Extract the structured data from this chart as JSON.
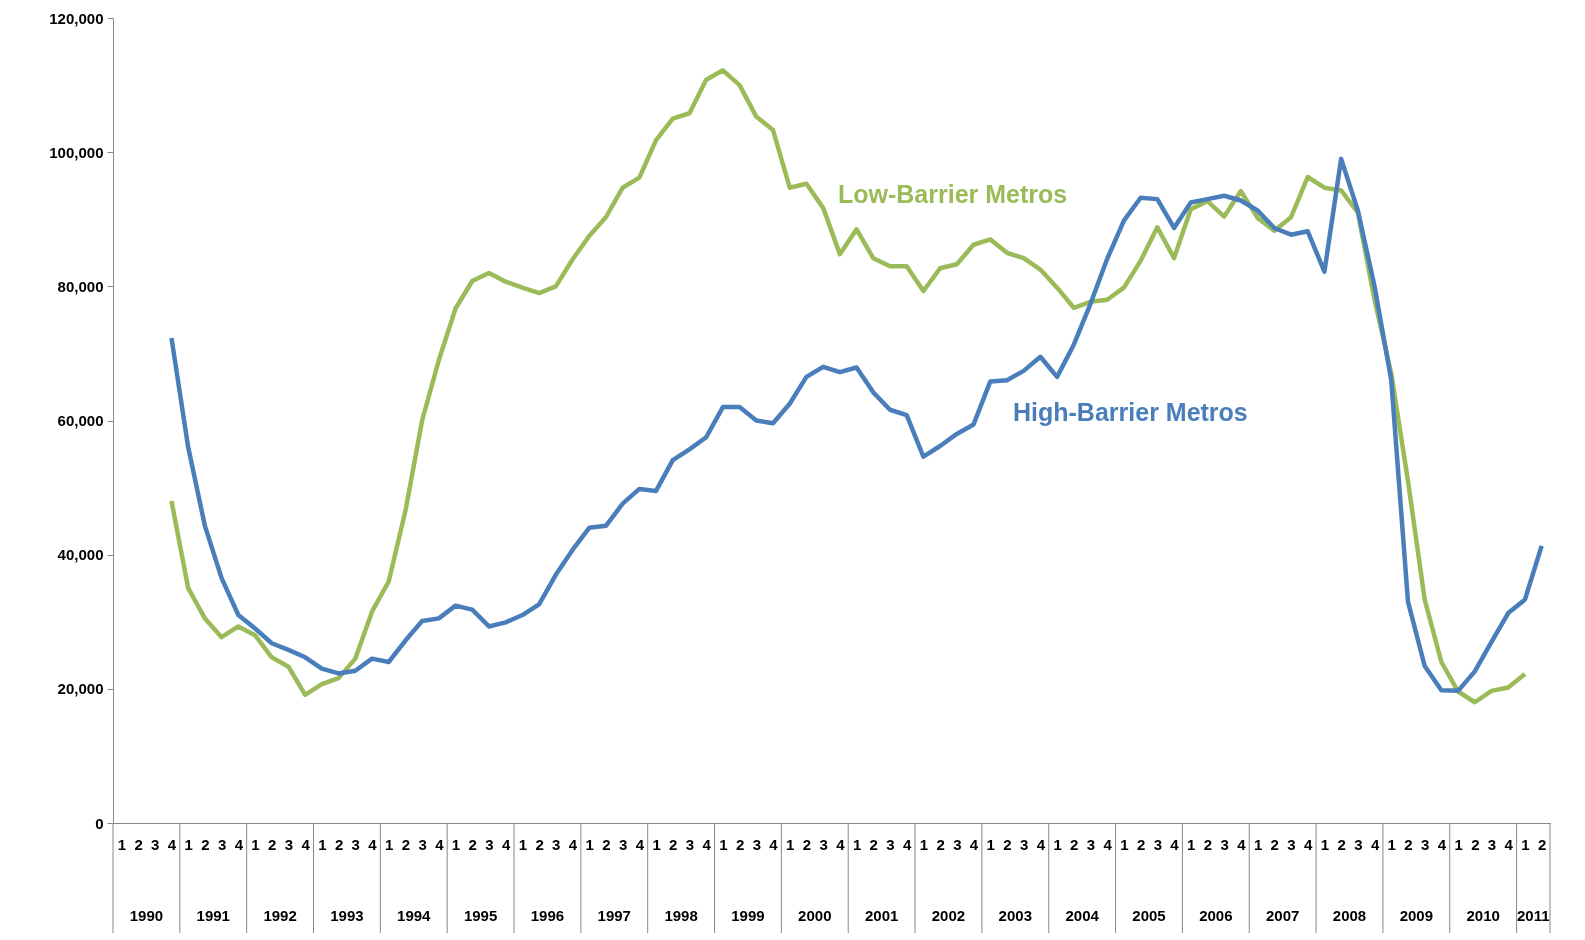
{
  "chart_data": {
    "type": "line",
    "categories": [
      "1",
      "2",
      "3",
      "4",
      "1",
      "2",
      "3",
      "4",
      "1",
      "2",
      "3",
      "4",
      "1",
      "2",
      "3",
      "4",
      "1",
      "2",
      "3",
      "4",
      "1",
      "2",
      "3",
      "4",
      "1",
      "2",
      "3",
      "4",
      "1",
      "2",
      "3",
      "4",
      "1",
      "2",
      "3",
      "4",
      "1",
      "2",
      "3",
      "4",
      "1",
      "2",
      "3",
      "4",
      "1",
      "2",
      "3",
      "4",
      "1",
      "2",
      "3",
      "4",
      "1",
      "2",
      "3",
      "4",
      "1",
      "2",
      "3",
      "4",
      "1",
      "2",
      "3",
      "4",
      "1",
      "2",
      "3",
      "4",
      "1",
      "2",
      "3",
      "4",
      "1",
      "2",
      "3",
      "4",
      "1",
      "2",
      "3",
      "4",
      "1",
      "2",
      "3",
      "4",
      "1",
      "2"
    ],
    "annotations": [
      "1990",
      "1991",
      "1992",
      "1993",
      "1994",
      "1995",
      "1996",
      "1997",
      "1998",
      "1999",
      "2000",
      "2001",
      "2002",
      "2003",
      "2004",
      "2005",
      "2006",
      "2007",
      "2008",
      "2009",
      "2010",
      "2011"
    ],
    "ylim": [
      0,
      120000
    ],
    "yticks": [
      0,
      {
        "value": 20000,
        "label": "20,000"
      },
      {
        "value": 40000,
        "label": "40,000"
      },
      {
        "value": 60000,
        "label": "60,000"
      },
      {
        "value": 80000,
        "label": "80,000"
      },
      {
        "value": 100000,
        "label": "100,000"
      },
      {
        "value": 120000,
        "label": "120,000"
      }
    ],
    "series": [
      {
        "name": "Low-Barrier Metros",
        "color": "#9bbb59",
        "values": [
          null,
          null,
          null,
          48000,
          35000,
          30500,
          27700,
          29300,
          28000,
          24700,
          23300,
          19100,
          20700,
          21600,
          24500,
          31500,
          36000,
          46500,
          60000,
          69000,
          76700,
          80800,
          82000,
          80700,
          79800,
          79000,
          80000,
          84000,
          87500,
          90300,
          94700,
          96200,
          101800,
          105000,
          105800,
          110800,
          112200,
          110000,
          105300,
          103300,
          94700,
          95300,
          91700,
          84800,
          88500,
          84200,
          83000,
          83000,
          79300,
          82700,
          83300,
          86200,
          87000,
          85000,
          84200,
          82500,
          79800,
          76800,
          77700,
          78000,
          79800,
          83800,
          88800,
          84200,
          91500,
          92700,
          90400,
          94200,
          90200,
          88300,
          90300,
          96300,
          94700,
          94300,
          91000,
          78000,
          67000,
          51000,
          33300,
          24000,
          19600,
          18000,
          19700,
          20200,
          22200,
          null
        ]
      },
      {
        "name": "High-Barrier Metros",
        "color": "#4a7ebb",
        "values": [
          null,
          null,
          null,
          72300,
          56000,
          44300,
          36500,
          31000,
          29000,
          26800,
          25800,
          24700,
          23000,
          22300,
          22700,
          24500,
          24000,
          27200,
          30100,
          30500,
          32400,
          31800,
          29300,
          29900,
          31000,
          32600,
          37000,
          40700,
          44000,
          44300,
          47600,
          49800,
          49500,
          54100,
          55700,
          57500,
          62000,
          62000,
          60000,
          59600,
          62500,
          66500,
          68000,
          67200,
          67900,
          64200,
          61600,
          60800,
          54600,
          56200,
          58000,
          59400,
          65800,
          66000,
          67400,
          69500,
          66500,
          71300,
          77400,
          84100,
          89800,
          93200,
          93000,
          88700,
          92500,
          93000,
          93500,
          92800,
          91300,
          88700,
          87700,
          88200,
          82200,
          99000,
          91300,
          80000,
          66000,
          33000,
          23400,
          19800,
          19700,
          22600,
          27000,
          31300,
          33300,
          41300
        ]
      }
    ]
  }
}
